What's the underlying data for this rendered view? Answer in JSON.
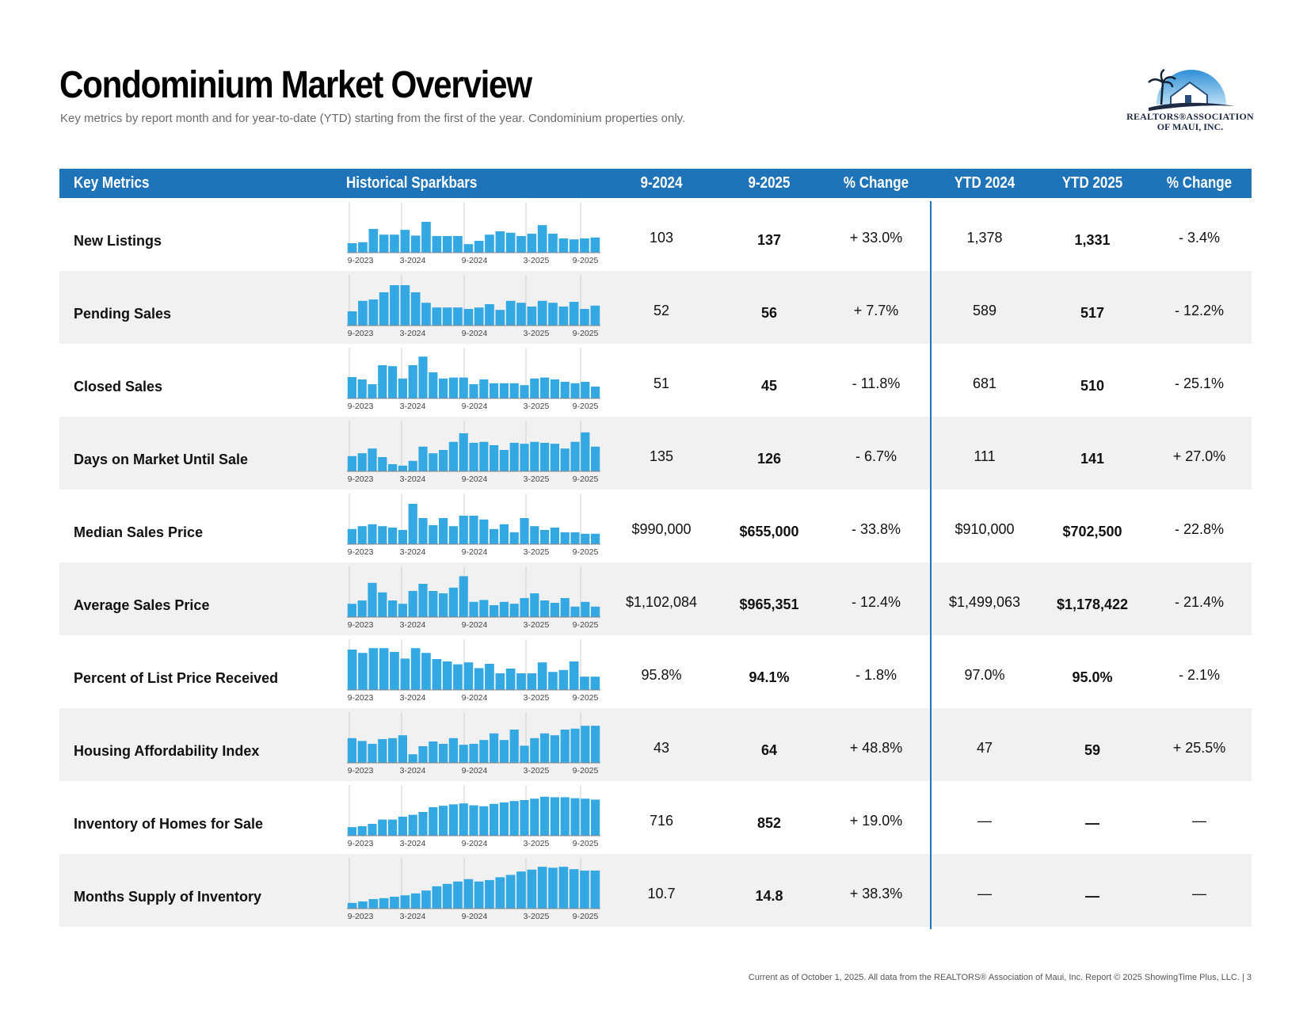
{
  "title": "Condominium Market Overview",
  "subtitle": "Key metrics by report month and for year-to-date (YTD) starting from the first of the year. Condominium properties only.",
  "logo": {
    "line1": "REALTORS®ASSOCIATION",
    "line2": "OF MAUI, INC."
  },
  "colors": {
    "header": "#1f73b9",
    "bars": "#33a8e3",
    "row_alt": "#f1f1f1"
  },
  "columns": [
    "Key Metrics",
    "Historical Sparkbars",
    "9-2024",
    "9-2025",
    "% Change",
    "YTD 2024",
    "YTD 2025",
    "% Change"
  ],
  "sparkbar_ticks": [
    "9-2023",
    "3-2024",
    "9-2024",
    "3-2025",
    "9-2025"
  ],
  "rows": [
    {
      "metric": "New Listings",
      "m2024": "103",
      "m2025": "137",
      "mchange": "+ 33.0%",
      "y2024": "1,378",
      "y2025": "1,331",
      "ychange": "- 3.4%",
      "bars": [
        20,
        22,
        50,
        38,
        38,
        48,
        36,
        65,
        35,
        35,
        35,
        18,
        25,
        38,
        45,
        42,
        35,
        40,
        58,
        40,
        30,
        28,
        30,
        32
      ]
    },
    {
      "metric": "Pending Sales",
      "m2024": "52",
      "m2025": "56",
      "mchange": "+ 7.7%",
      "y2024": "589",
      "y2025": "517",
      "ychange": "- 12.2%",
      "bars": [
        30,
        52,
        55,
        70,
        85,
        85,
        70,
        48,
        38,
        38,
        38,
        35,
        38,
        45,
        33,
        52,
        48,
        40,
        52,
        48,
        40,
        50,
        35,
        42
      ]
    },
    {
      "metric": "Closed Sales",
      "m2024": "51",
      "m2025": "45",
      "mchange": "- 11.8%",
      "y2024": "681",
      "y2025": "510",
      "ychange": "- 25.1%",
      "bars": [
        45,
        40,
        30,
        70,
        68,
        42,
        70,
        88,
        55,
        42,
        44,
        44,
        30,
        40,
        32,
        32,
        32,
        28,
        42,
        44,
        40,
        35,
        32,
        35,
        25
      ]
    },
    {
      "metric": "Days on Market Until Sale",
      "m2024": "135",
      "m2025": "126",
      "mchange": "- 6.7%",
      "y2024": "111",
      "y2025": "141",
      "ychange": "+ 27.0%",
      "bars": [
        32,
        38,
        48,
        30,
        15,
        12,
        22,
        52,
        38,
        45,
        62,
        80,
        60,
        62,
        55,
        45,
        60,
        58,
        62,
        60,
        58,
        48,
        62,
        82,
        52
      ]
    },
    {
      "metric": "Median Sales Price",
      "m2024": "$990,000",
      "m2025": "$655,000",
      "mchange": "- 33.8%",
      "y2024": "$910,000",
      "y2025": "$702,500",
      "ychange": "- 22.8%",
      "bars": [
        32,
        38,
        42,
        38,
        35,
        30,
        85,
        55,
        40,
        55,
        38,
        60,
        60,
        52,
        32,
        42,
        25,
        55,
        38,
        30,
        35,
        25,
        25,
        22,
        22
      ]
    },
    {
      "metric": "Average Sales Price",
      "m2024": "$1,102,084",
      "m2025": "$965,351",
      "mchange": "- 12.4%",
      "y2024": "$1,499,063",
      "y2025": "$1,178,422",
      "ychange": "- 21.4%",
      "bars": [
        28,
        35,
        72,
        52,
        35,
        28,
        55,
        70,
        55,
        50,
        62,
        86,
        32,
        36,
        25,
        32,
        28,
        40,
        50,
        35,
        30,
        40,
        22,
        32,
        22
      ]
    },
    {
      "metric": "Percent of List Price Received",
      "m2024": "95.8%",
      "m2025": "94.1%",
      "mchange": "- 1.8%",
      "y2024": "97.0%",
      "y2025": "95.0%",
      "ychange": "- 2.1%",
      "bars": [
        85,
        78,
        88,
        88,
        80,
        66,
        88,
        78,
        65,
        60,
        54,
        58,
        46,
        55,
        35,
        45,
        35,
        35,
        58,
        38,
        42,
        60,
        28,
        28
      ]
    },
    {
      "metric": "Housing Affordability Index",
      "m2024": "43",
      "m2025": "64",
      "mchange": "+ 48.8%",
      "y2024": "47",
      "y2025": "59",
      "ychange": "+ 25.5%",
      "bars": [
        52,
        46,
        40,
        50,
        52,
        58,
        18,
        35,
        45,
        40,
        52,
        38,
        40,
        48,
        62,
        48,
        70,
        36,
        52,
        62,
        58,
        70,
        72,
        78,
        78
      ]
    },
    {
      "metric": "Inventory of Homes for Sale",
      "m2024": "716",
      "m2025": "852",
      "mchange": "+ 19.0%",
      "y2024": "—",
      "y2025": "—",
      "ychange": "—",
      "bars": [
        18,
        20,
        25,
        34,
        34,
        40,
        44,
        50,
        60,
        63,
        66,
        68,
        64,
        62,
        67,
        70,
        73,
        75,
        78,
        82,
        81,
        81,
        79,
        78,
        76
      ]
    },
    {
      "metric": "Months Supply of Inventory",
      "m2024": "10.7",
      "m2025": "14.8",
      "mchange": "+ 38.3%",
      "y2024": "—",
      "y2025": "—",
      "ychange": "—",
      "bars": [
        12,
        15,
        20,
        22,
        25,
        28,
        32,
        38,
        47,
        52,
        57,
        62,
        57,
        60,
        66,
        71,
        78,
        82,
        88,
        86,
        88,
        83,
        80,
        80
      ]
    }
  ],
  "footer": "Current as of October 1, 2025. All data from the REALTORS® Association of Maui, Inc. Report © 2025 ShowingTime Plus, LLC.  |  3"
}
